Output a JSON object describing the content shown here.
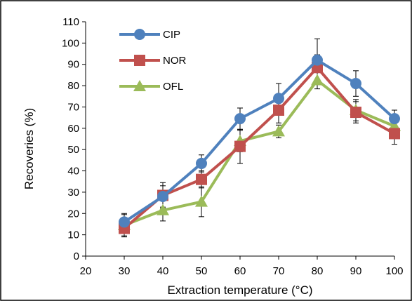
{
  "chart_data": {
    "type": "line",
    "xlabel": "Extraction temperature  (°C)",
    "ylabel": "Recoveries (%)",
    "xlim": [
      20,
      100
    ],
    "ylim": [
      0,
      110
    ],
    "x_ticks": [
      20,
      30,
      40,
      50,
      60,
      70,
      80,
      90,
      100
    ],
    "y_ticks": [
      0,
      10,
      20,
      30,
      40,
      50,
      60,
      70,
      80,
      90,
      100,
      110
    ],
    "grid": false,
    "legend": "top-left",
    "x": [
      30,
      40,
      50,
      60,
      70,
      80,
      90,
      100
    ],
    "series": [
      {
        "name": "CIP",
        "color": "#4f81bd",
        "marker": "circle",
        "values": [
          16,
          28,
          43.5,
          64.5,
          74,
          92,
          81,
          64.5
        ],
        "errors": [
          4,
          5,
          4,
          5,
          7,
          10,
          6,
          4
        ]
      },
      {
        "name": "NOR",
        "color": "#c0504d",
        "marker": "square",
        "values": [
          13,
          28.5,
          36,
          51.5,
          68.5,
          88.5,
          67.5,
          57.5
        ],
        "errors": [
          4,
          6,
          4,
          8,
          6,
          6,
          5,
          5
        ]
      },
      {
        "name": "OFL",
        "color": "#9bbb59",
        "marker": "triangle",
        "values": [
          14.5,
          21.5,
          25.5,
          54,
          58.5,
          82.5,
          68.5,
          61
        ],
        "errors": [
          5,
          5,
          7,
          5,
          3,
          4,
          5,
          5
        ]
      }
    ]
  }
}
